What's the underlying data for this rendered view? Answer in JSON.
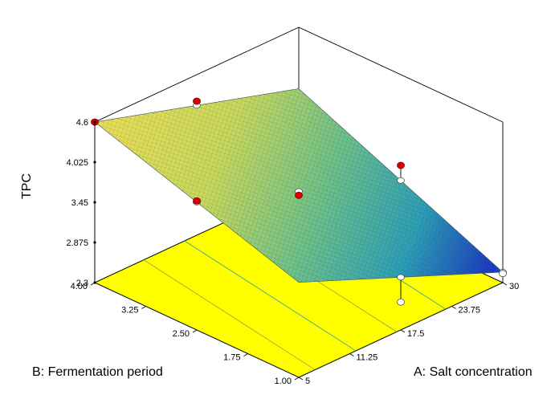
{
  "chart_data": {
    "type": "surface3d",
    "title": "",
    "zlabel": "TPC",
    "xlabel": "A: Salt concentration",
    "ylabel": "B: Fermentation period",
    "x_ticks": [
      "5",
      "11.25",
      "17.5",
      "23.75",
      "30"
    ],
    "y_ticks": [
      "1.00",
      "1.75",
      "2.50",
      "3.25",
      "4.00"
    ],
    "z_ticks": [
      "2.3",
      "2.875",
      "3.45",
      "4.025",
      "4.6"
    ],
    "xlim": [
      5,
      30
    ],
    "ylim": [
      1.0,
      4.0
    ],
    "zlim": [
      2.3,
      4.6
    ],
    "surface_corners": [
      {
        "x": 5,
        "y": 1.0,
        "z": 3.66
      },
      {
        "x": 30,
        "y": 1.0,
        "z": 2.45
      },
      {
        "x": 5,
        "y": 4.0,
        "z": 4.6
      },
      {
        "x": 30,
        "y": 4.0,
        "z": 3.72
      }
    ],
    "design_points": [
      {
        "x": 5,
        "y": 4.0,
        "z": 4.6,
        "above_surface": true
      },
      {
        "x": 17.5,
        "y": 4.0,
        "z": 4.22,
        "above_surface": true
      },
      {
        "x": 5,
        "y": 2.5,
        "z": 4.15,
        "above_surface": true
      },
      {
        "x": 17.5,
        "y": 2.5,
        "z": 3.55,
        "above_surface": true
      },
      {
        "x": 30,
        "y": 2.5,
        "z": 3.3,
        "above_surface": true
      },
      {
        "x": 17.5,
        "y": 1.0,
        "z": 2.7,
        "above_surface": false
      },
      {
        "x": 30,
        "y": 1.0,
        "z": 2.43,
        "above_surface": false
      }
    ],
    "floor_color": "#ffff00",
    "surface_colormap": [
      "#1f1fb4",
      "#1f8fc8",
      "#3fbf9f",
      "#9fdf5f",
      "#ffff3f"
    ],
    "point_color": "#e00000",
    "grid": false
  }
}
